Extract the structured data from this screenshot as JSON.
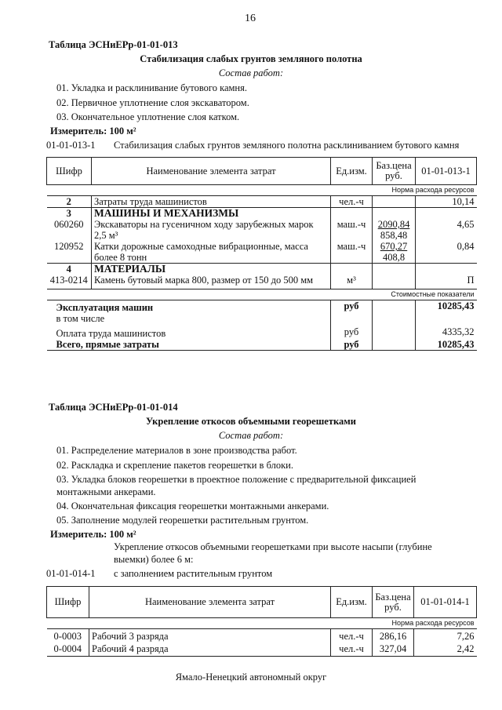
{
  "page_number": "16",
  "footer": "Ямало-Ненецкий автономный округ",
  "t1": {
    "table_label": "Таблица  ЭСНиЕРр-01-01-013",
    "title": "Стабилизация слабых грунтов земляного полотна",
    "works_label": "Состав работ:",
    "works": [
      "01. Укладка и расклинивание бутового камня.",
      "02. Первичное уплотнение слоя экскаватором.",
      "03. Окончательное уплотнение слоя катком."
    ],
    "measure": "Измеритель: 100 м²",
    "code": "01-01-013-1",
    "code_desc": "Стабилизация слабых грунтов земляного полотна расклиниванием бутового камня",
    "headers": [
      "Шифр",
      "Наименование элемента затрат",
      "Ед.изм.",
      "Баз.цена руб.",
      "01-01-013-1"
    ],
    "norm_label": "Норма расхода ресурсов",
    "cost_label": "Стоимостные показатели",
    "rows": [
      {
        "code": "2",
        "name": "Затраты труда машинистов",
        "unit": "чел.-ч",
        "price": "",
        "price2": "",
        "value": "10,14"
      },
      {
        "code": "3",
        "name": "МАШИНЫ И МЕХАНИЗМЫ",
        "unit": "",
        "price": "",
        "price2": "",
        "value": ""
      },
      {
        "code": "060260",
        "name": "Экскаваторы на гусеничном ходу зарубежных марок 2,5 м³",
        "unit": "маш.-ч",
        "price": "2090,84",
        "price2": "858,48",
        "value": "4,65"
      },
      {
        "code": "120952",
        "name": "Катки дорожные самоходные вибрационные, масса более 8 тонн",
        "unit": "маш.-ч",
        "price": "670,27",
        "price2": "408,8",
        "value": "0,84"
      },
      {
        "code": "4",
        "name": "МАТЕРИАЛЫ",
        "unit": "",
        "price": "",
        "price2": "",
        "value": ""
      },
      {
        "code": "413-0214",
        "name": "Камень бутовый марка 800, размер от 150 до 500 мм",
        "unit": "м³",
        "price": "",
        "price2": "",
        "value": "П"
      }
    ],
    "costs": [
      {
        "name": "Эксплуатация машин",
        "unit": "руб",
        "value": "10285,43"
      },
      {
        "name": "в том числе",
        "unit": "",
        "value": ""
      },
      {
        "name": "Оплата труда машинистов",
        "unit": "руб",
        "value": "4335,32"
      },
      {
        "name": "Всего, прямые затраты",
        "unit": "руб",
        "value": "10285,43"
      }
    ]
  },
  "t2": {
    "table_label": "Таблица  ЭСНиЕРр-01-01-014",
    "title": "Укрепление откосов объемными георешетками",
    "works_label": "Состав работ:",
    "works": [
      "01. Распределение материалов в зоне производства работ.",
      "02. Раскладка и скрепление пакетов георешетки в блоки.",
      "03. Укладка блоков георешетки в проектное положение с предварительной фиксацией",
      "монтажными анкерами.",
      "04. Окончательная фиксация георешетки монтажными анкерами.",
      "05. Заполнение модулей георешетки растительным грунтом."
    ],
    "measure": "Измеритель: 100 м²",
    "group_desc1": "Укрепление откосов объемными георешетками при высоте насыпи (глубине",
    "group_desc2": "выемки) более 6 м:",
    "code": "01-01-014-1",
    "code_desc": "с заполнением растительным грунтом",
    "headers": [
      "Шифр",
      "Наименование элемента затрат",
      "Ед.изм.",
      "Баз.цена руб.",
      "01-01-014-1"
    ],
    "norm_label": "Норма расхода ресурсов",
    "rows": [
      {
        "code": "0-0003",
        "name": "Рабочий 3 разряда",
        "unit": "чел.-ч",
        "price": "286,16",
        "value": "7,26"
      },
      {
        "code": "0-0004",
        "name": "Рабочий 4 разряда",
        "unit": "чел.-ч",
        "price": "327,04",
        "value": "2,42"
      }
    ]
  }
}
